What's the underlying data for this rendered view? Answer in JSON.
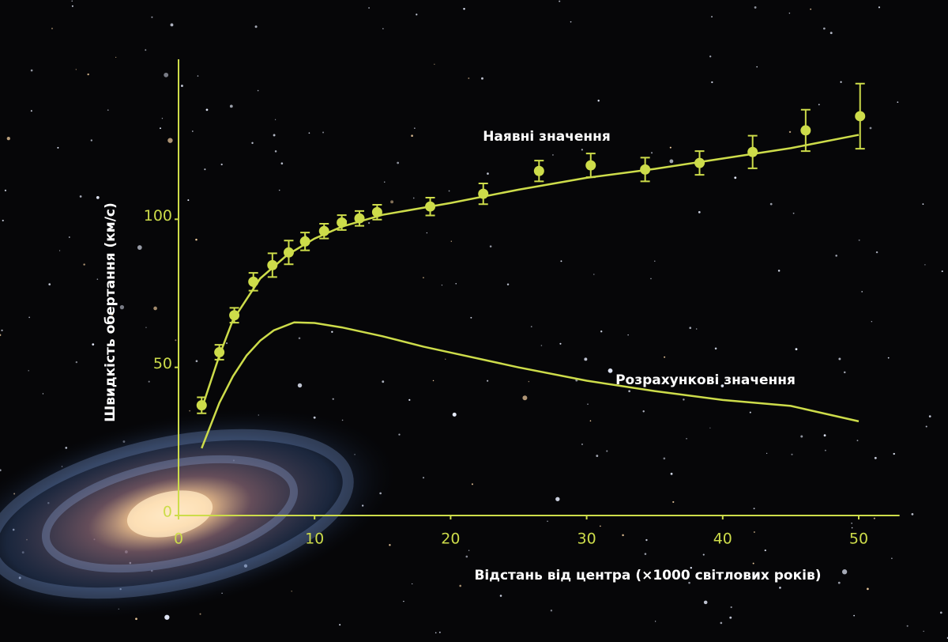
{
  "chart_data": {
    "type": "scatter",
    "xlabel": "Відстань від центра (×1000 світлових років)",
    "ylabel": "Швидкість обертання (км/с)",
    "xlim": [
      0,
      53
    ],
    "ylim": [
      0,
      154
    ],
    "xticks": [
      0,
      10,
      20,
      30,
      40,
      50
    ],
    "yticks": [
      0,
      50,
      100
    ],
    "color": "#cddc4a",
    "series": [
      {
        "name": "Наявні значення",
        "color": "#cddc4a",
        "x": [
          1.7,
          3.0,
          4.1,
          5.5,
          6.9,
          8.1,
          9.3,
          10.7,
          12.0,
          13.3,
          14.6,
          18.5,
          22.4,
          26.5,
          30.3,
          34.3,
          38.3,
          42.2,
          46.1,
          50.1
        ],
        "values": [
          37.2,
          55.1,
          67.6,
          78.9,
          84.5,
          88.8,
          92.5,
          96,
          98.9,
          100.3,
          102.4,
          104.3,
          108.6,
          116.3,
          118.2,
          116.8,
          119,
          122.7,
          130,
          134.8
        ],
        "errors": [
          2.7,
          2.5,
          2.5,
          3,
          4,
          4,
          3,
          2.5,
          2.5,
          2.5,
          2.5,
          3,
          3.5,
          3.5,
          4,
          4,
          4,
          5.5,
          7,
          11
        ]
      },
      {
        "name": "Розрахункові значення",
        "color": "#cddc4a",
        "x": [
          1.7,
          3,
          4,
          5,
          6,
          7,
          8.5,
          10,
          12,
          15,
          18,
          20,
          25,
          30,
          35,
          40,
          45,
          50
        ],
        "values": [
          22.7,
          38,
          47,
          54,
          59,
          62.5,
          65.2,
          65,
          63.5,
          60.5,
          57,
          55,
          50,
          45.5,
          42,
          39,
          37,
          31.8
        ]
      }
    ],
    "fit": {
      "x": [
        1.7,
        3,
        4,
        6,
        8,
        10,
        12,
        15,
        20,
        25,
        30,
        35,
        40,
        45,
        50
      ],
      "values": [
        36,
        54,
        66,
        80,
        88,
        93.5,
        97.5,
        101.5,
        105.5,
        110,
        114,
        117,
        120.5,
        124,
        128.5
      ]
    }
  }
}
